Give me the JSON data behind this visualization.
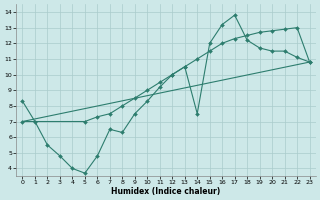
{
  "title": "",
  "xlabel": "Humidex (Indice chaleur)",
  "bg_color": "#cde8e8",
  "line_color": "#2d7d6e",
  "grid_color": "#aacccc",
  "xlim": [
    -0.5,
    23.5
  ],
  "ylim": [
    3.5,
    14.5
  ],
  "xticks": [
    0,
    1,
    2,
    3,
    4,
    5,
    6,
    7,
    8,
    9,
    10,
    11,
    12,
    13,
    14,
    15,
    16,
    17,
    18,
    19,
    20,
    21,
    22,
    23
  ],
  "yticks": [
    4,
    5,
    6,
    7,
    8,
    9,
    10,
    11,
    12,
    13,
    14
  ],
  "series": [
    {
      "x": [
        0,
        1,
        2,
        3,
        4,
        5,
        6,
        7,
        8,
        9,
        10,
        11,
        12,
        13,
        14,
        15,
        16,
        17,
        18,
        19,
        20,
        21,
        22,
        23
      ],
      "y": [
        8.3,
        7.0,
        5.5,
        4.8,
        4.0,
        3.7,
        4.8,
        6.5,
        6.3,
        7.5,
        8.3,
        9.2,
        10.0,
        10.5,
        7.5,
        12.0,
        13.2,
        13.8,
        12.2,
        11.7,
        11.5,
        11.5,
        11.1,
        10.8
      ]
    },
    {
      "x": [
        0,
        5,
        6,
        7,
        8,
        9,
        10,
        11,
        12,
        13,
        14,
        15,
        16,
        17,
        18,
        19,
        20,
        21,
        22,
        23
      ],
      "y": [
        7.0,
        7.0,
        7.3,
        7.5,
        8.0,
        8.5,
        9.0,
        9.5,
        10.0,
        10.5,
        11.0,
        11.5,
        12.0,
        12.3,
        12.5,
        12.7,
        12.8,
        12.9,
        13.0,
        10.8
      ]
    },
    {
      "x": [
        0,
        23
      ],
      "y": [
        7.0,
        10.8
      ],
      "no_marker": true
    }
  ]
}
